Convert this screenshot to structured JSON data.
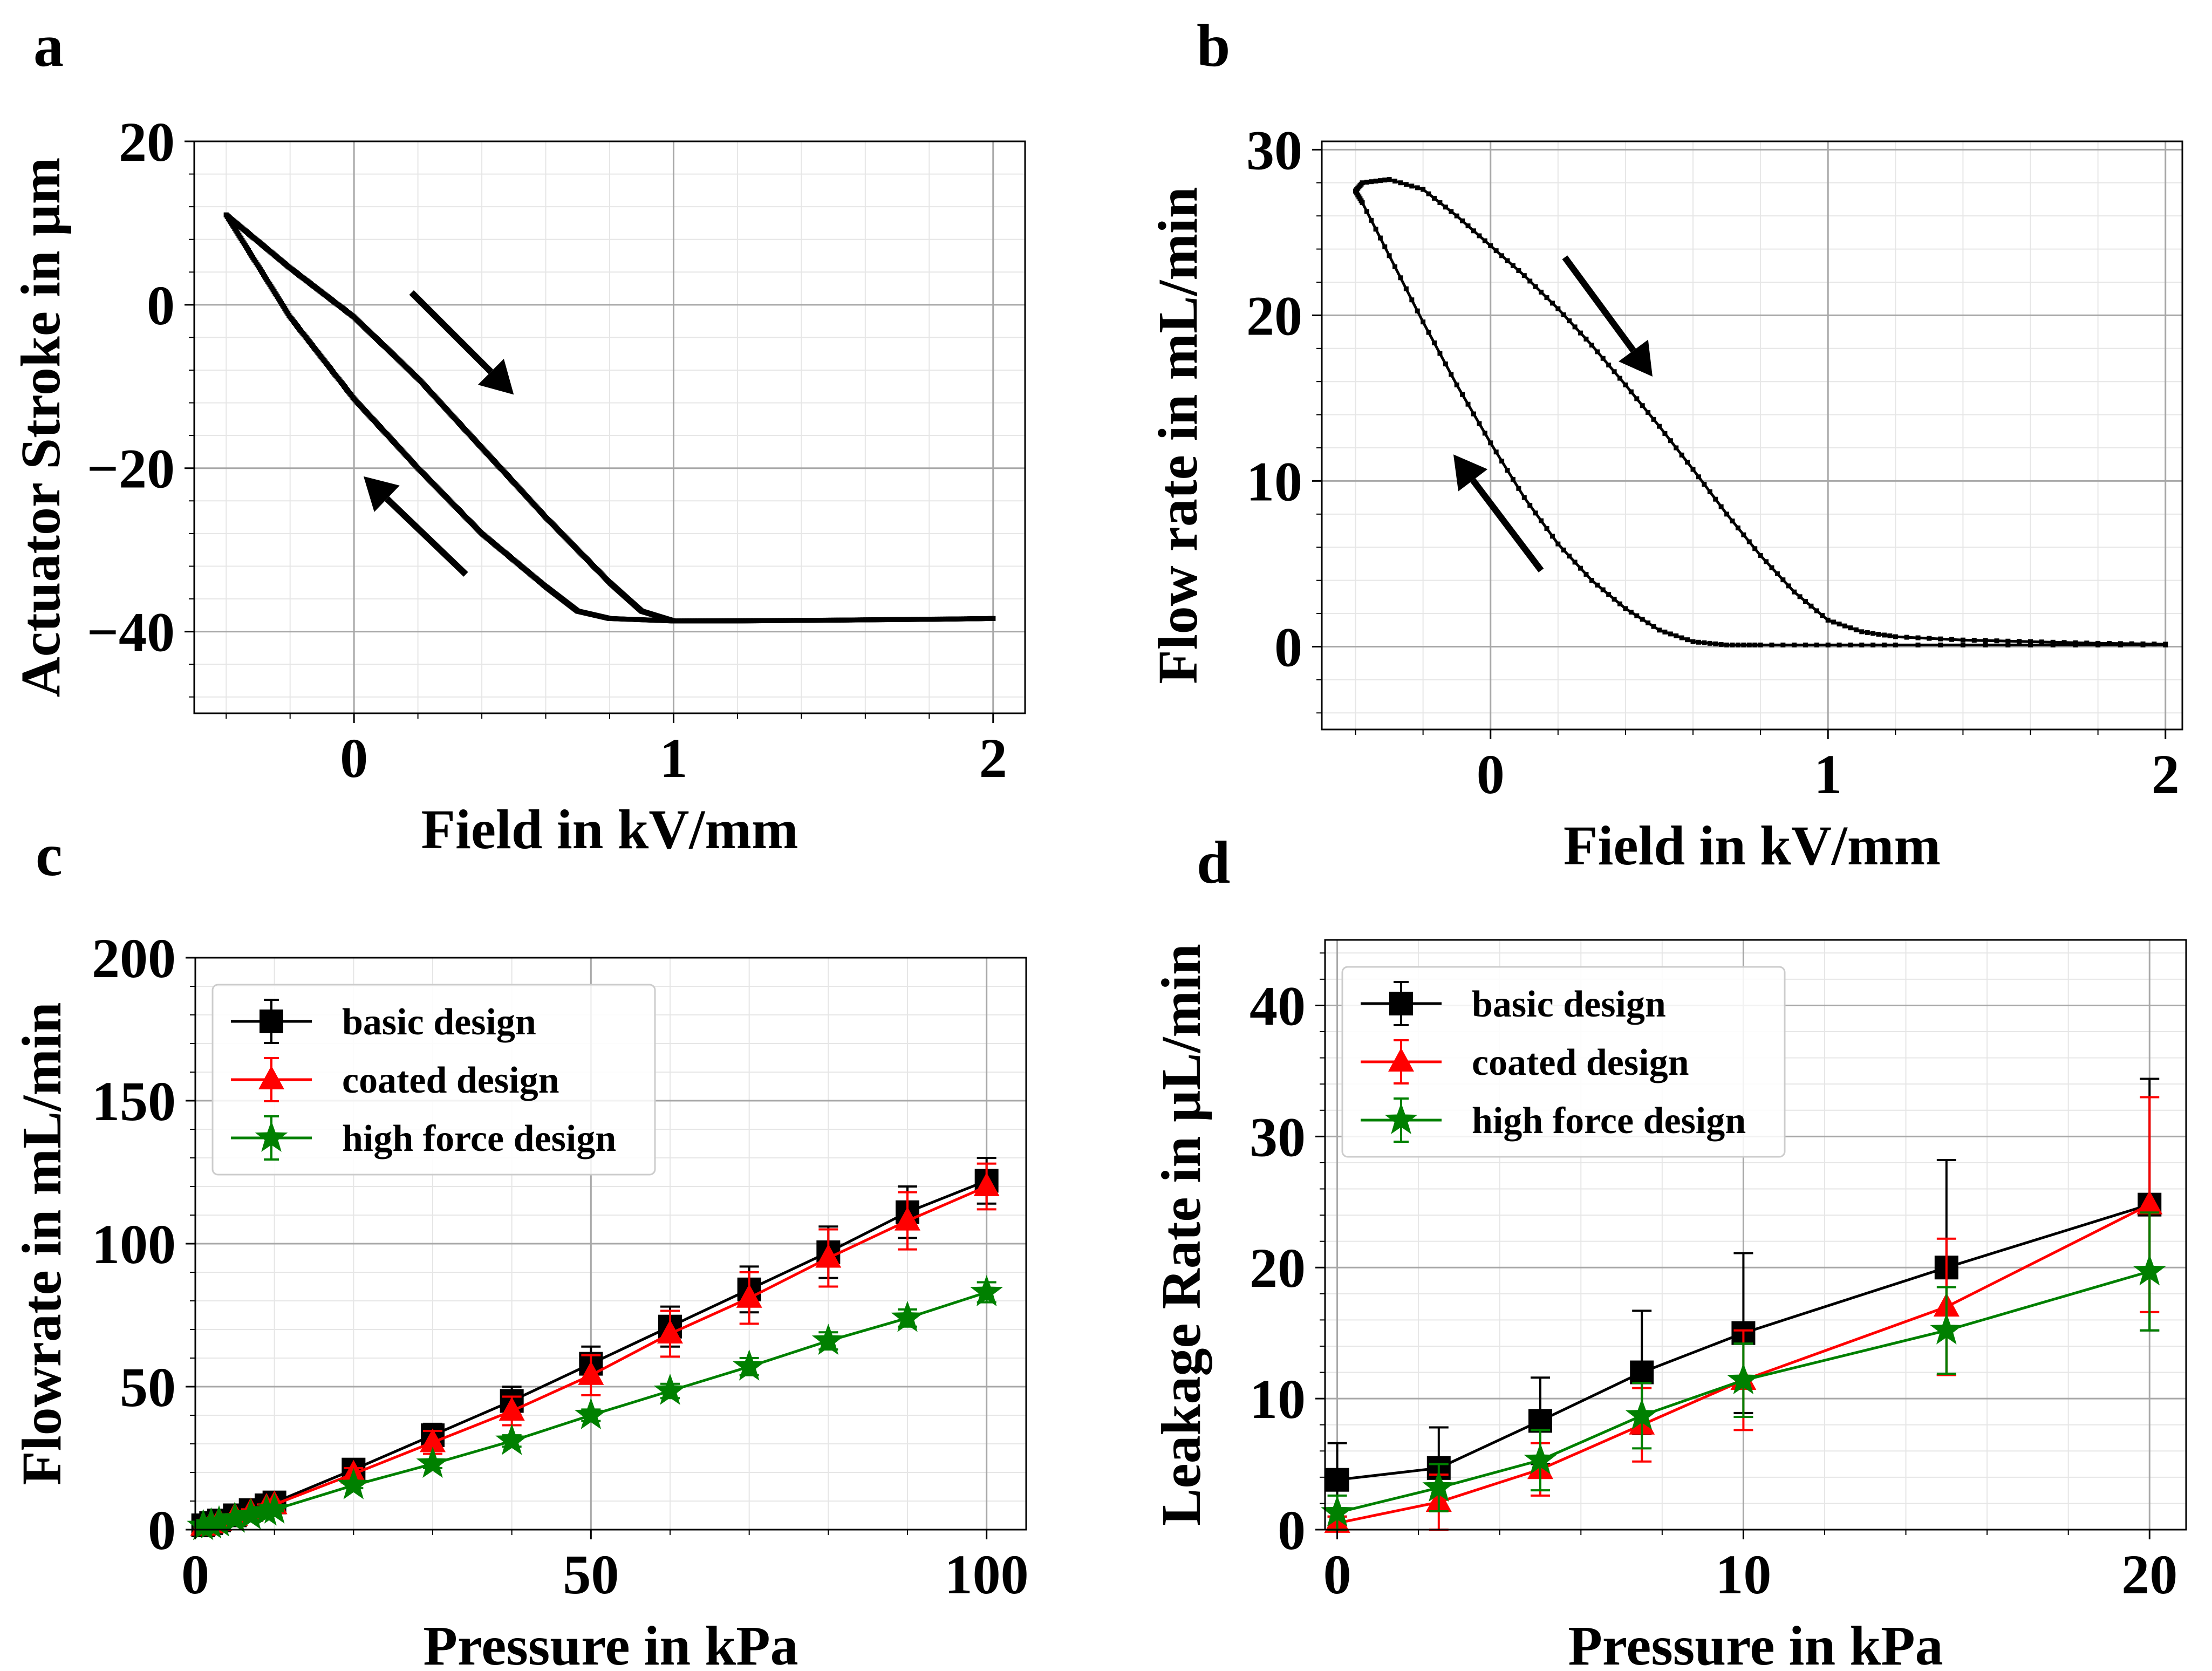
{
  "chart_data": [
    {
      "panel_label": "a",
      "type": "line",
      "xlabel": "Field in kV/mm",
      "ylabel": "Actuator Stroke in µm",
      "xlim": [
        -0.5,
        2.1
      ],
      "ylim": [
        -50,
        20
      ],
      "xticks": [
        0,
        1,
        2
      ],
      "xtick_labels": [
        "0",
        "1",
        "2"
      ],
      "yticks": [
        -40,
        -20,
        0,
        20
      ],
      "ytick_labels": [
        "−40",
        "−20",
        "0",
        "20"
      ],
      "grid": true,
      "minor_grid": true,
      "series": [
        {
          "label_shown": false,
          "branch": "descending field (upper branch)",
          "color": "#000000",
          "x": [
            -0.4,
            -0.2,
            0.0,
            0.2,
            0.4,
            0.6,
            0.8,
            0.9,
            1.0,
            1.2,
            1.5,
            1.8,
            2.0
          ],
          "y": [
            11,
            4.5,
            -1.5,
            -9,
            -17.5,
            -26,
            -34,
            -37.5,
            -38.7,
            -38.7,
            -38.6,
            -38.5,
            -38.4
          ]
        },
        {
          "label_shown": false,
          "branch": "increasing field back from 2 to -0.4 (lower branch)",
          "color": "#000000",
          "x": [
            2.0,
            1.5,
            1.0,
            0.8,
            0.7,
            0.6,
            0.4,
            0.2,
            0.0,
            -0.2,
            -0.4
          ],
          "y": [
            -38.4,
            -38.6,
            -38.7,
            -38.4,
            -37.5,
            -34.5,
            -28,
            -20,
            -11.5,
            -1.5,
            11
          ]
        }
      ],
      "annotations": [
        {
          "type": "arrow",
          "direction": "down-right",
          "from": [
            0.18,
            1.5
          ],
          "to": [
            0.5,
            -11
          ]
        },
        {
          "type": "arrow",
          "direction": "up-left",
          "from": [
            0.35,
            -33
          ],
          "to": [
            0.03,
            -21
          ]
        }
      ]
    },
    {
      "panel_label": "b",
      "type": "line",
      "xlabel": "Field in kV/mm",
      "ylabel": "Flow rate in mL/min",
      "xlim": [
        -0.5,
        2.05
      ],
      "ylim": [
        -5,
        30.5
      ],
      "xticks": [
        0,
        1,
        2
      ],
      "xtick_labels": [
        "0",
        "1",
        "2"
      ],
      "yticks": [
        0,
        10,
        20,
        30
      ],
      "ytick_labels": [
        "0",
        "10",
        "20",
        "30"
      ],
      "grid": true,
      "minor_grid": true,
      "series": [
        {
          "label_shown": false,
          "branch": "upper branch",
          "color": "#000000",
          "x": [
            -0.4,
            -0.38,
            -0.3,
            -0.2,
            -0.1,
            0.0,
            0.1,
            0.2,
            0.3,
            0.4,
            0.5,
            0.6,
            0.7,
            0.8,
            0.9,
            1.0,
            1.1,
            1.2,
            1.4,
            1.6,
            1.8,
            2.0
          ],
          "y": [
            27.5,
            28.0,
            28.2,
            27.6,
            26.0,
            24.2,
            22.4,
            20.4,
            18.2,
            15.8,
            13.3,
            10.7,
            8.0,
            5.5,
            3.3,
            1.6,
            0.9,
            0.6,
            0.4,
            0.3,
            0.2,
            0.15
          ]
        },
        {
          "label_shown": false,
          "branch": "lower branch",
          "color": "#000000",
          "x": [
            2.0,
            1.6,
            1.2,
            1.0,
            0.8,
            0.7,
            0.6,
            0.5,
            0.4,
            0.3,
            0.2,
            0.1,
            0.0,
            -0.1,
            -0.2,
            -0.3,
            -0.38,
            -0.4
          ],
          "y": [
            0.1,
            0.1,
            0.1,
            0.1,
            0.1,
            0.1,
            0.3,
            1.0,
            2.3,
            4.0,
            6.2,
            9.0,
            12.3,
            15.8,
            19.6,
            23.6,
            26.8,
            27.5
          ]
        }
      ],
      "annotations": [
        {
          "type": "arrow",
          "direction": "down-right",
          "from": [
            0.22,
            23.5
          ],
          "to": [
            0.48,
            16.3
          ]
        },
        {
          "type": "arrow",
          "direction": "up-left",
          "from": [
            0.15,
            4.6
          ],
          "to": [
            -0.11,
            11.6
          ]
        }
      ]
    },
    {
      "panel_label": "c",
      "type": "line",
      "xlabel": "Pressure in kPa",
      "ylabel": "Flowrate in mL/min",
      "xlim": [
        0,
        105
      ],
      "ylim": [
        0,
        200
      ],
      "xticks": [
        0,
        50,
        100
      ],
      "xtick_labels": [
        "0",
        "50",
        "100"
      ],
      "yticks": [
        0,
        50,
        100,
        150,
        200
      ],
      "ytick_labels": [
        "0",
        "50",
        "100",
        "150",
        "200"
      ],
      "grid": true,
      "minor_grid": true,
      "legend_position": "top-left",
      "x": [
        1,
        2,
        3,
        5,
        7,
        9,
        10,
        20,
        30,
        40,
        50,
        60,
        70,
        80,
        90,
        100
      ],
      "series": [
        {
          "name": "basic design",
          "color": "#000000",
          "marker": "square",
          "y": [
            1.5,
            2.3,
            3.2,
            5.0,
            6.8,
            8.5,
            9.5,
            21,
            33,
            45,
            58,
            71,
            84,
            97,
            111,
            122
          ],
          "err": [
            0.5,
            0.5,
            0.6,
            0.7,
            0.8,
            0.9,
            1.0,
            2,
            4,
            5,
            6,
            7,
            8,
            9,
            9,
            8
          ]
        },
        {
          "name": "coated design",
          "color": "#ff0000",
          "marker": "triangle",
          "y": [
            1.3,
            2.1,
            3.0,
            4.7,
            6.3,
            7.9,
            8.8,
            19.5,
            30.5,
            41.5,
            54,
            68.5,
            81,
            95,
            108,
            120
          ],
          "err": [
            0.5,
            0.5,
            0.6,
            0.7,
            0.8,
            0.9,
            1.0,
            2,
            4,
            5,
            7,
            8,
            9,
            10,
            10,
            8
          ]
        },
        {
          "name": "high force design",
          "color": "#008000",
          "marker": "star",
          "y": [
            1.2,
            1.8,
            2.5,
            3.8,
            5.0,
            6.3,
            7.0,
            15.5,
            23,
            31,
            40,
            48.5,
            57,
            66,
            74,
            83
          ],
          "err": [
            0.3,
            0.3,
            0.4,
            0.4,
            0.5,
            0.5,
            0.6,
            1,
            1.5,
            2,
            2,
            2.5,
            3,
            3,
            3,
            3.5
          ]
        }
      ]
    },
    {
      "panel_label": "d",
      "type": "line",
      "xlabel": "Pressure in kPa",
      "ylabel": "Leakage Rate in μL/min",
      "xlim": [
        -0.3,
        20.9
      ],
      "ylim": [
        0,
        45
      ],
      "xticks": [
        0,
        10,
        20
      ],
      "xtick_labels": [
        "0",
        "10",
        "20"
      ],
      "yticks": [
        0,
        10,
        20,
        30,
        40
      ],
      "ytick_labels": [
        "0",
        "10",
        "20",
        "30",
        "40"
      ],
      "grid": true,
      "minor_grid": true,
      "legend_position": "top-left",
      "x": [
        0,
        2.5,
        5,
        7.5,
        10,
        15,
        20
      ],
      "series": [
        {
          "name": "basic design",
          "color": "#000000",
          "marker": "square",
          "y": [
            3.8,
            4.7,
            8.3,
            12.0,
            15.0,
            20.0,
            24.8
          ],
          "err": [
            2.8,
            3.1,
            3.3,
            4.7,
            6.1,
            8.2,
            9.6
          ]
        },
        {
          "name": "coated design",
          "color": "#ff0000",
          "marker": "triangle",
          "y": [
            0.5,
            2.1,
            4.6,
            8.0,
            11.4,
            17.0,
            24.8
          ],
          "err": [
            0.5,
            2.1,
            2.0,
            2.8,
            3.8,
            5.2,
            8.2
          ]
        },
        {
          "name": "high force design",
          "color": "#008000",
          "marker": "star",
          "y": [
            1.3,
            3.2,
            5.3,
            8.7,
            11.4,
            15.2,
            19.7
          ],
          "err": [
            1.3,
            1.8,
            2.3,
            2.5,
            2.8,
            3.3,
            4.5
          ]
        }
      ]
    }
  ]
}
